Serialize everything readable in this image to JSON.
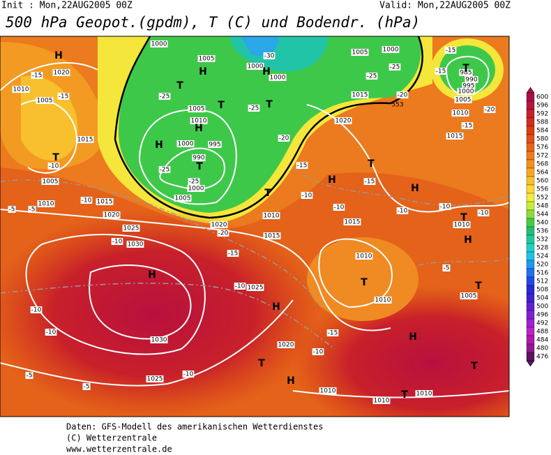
{
  "header": {
    "init": "Init : Mon,22AUG2005 00Z",
    "valid": "Valid: Mon,22AUG2005 00Z",
    "title": "500 hPa Geopot.(gpdm), T (C) und Bodendr. (hPa)"
  },
  "legend": {
    "levels": [
      600,
      596,
      592,
      588,
      584,
      580,
      576,
      572,
      568,
      564,
      560,
      556,
      552,
      548,
      544,
      540,
      536,
      532,
      528,
      524,
      520,
      516,
      512,
      508,
      504,
      500,
      496,
      492,
      488,
      484,
      480,
      476
    ],
    "colors": [
      "#a8104a",
      "#b8143c",
      "#c8202a",
      "#d22d1c",
      "#dc3c14",
      "#e44e14",
      "#ea6418",
      "#f07a1c",
      "#f49020",
      "#f8a826",
      "#fcc02c",
      "#fcd834",
      "#f4ec3c",
      "#c8ec3c",
      "#8cdc3c",
      "#44cc44",
      "#20c070",
      "#20c8a0",
      "#20d0c8",
      "#20c0e8",
      "#2098f0",
      "#2070f0",
      "#2448e8",
      "#2828d8",
      "#4020d0",
      "#6020d0",
      "#8020d0",
      "#a020d0",
      "#c020c8",
      "#b018b0",
      "#901890",
      "#601060"
    ]
  },
  "map": {
    "isobar_labels": [
      1000,
      1005,
      1000,
      1000,
      1005,
      1000,
      1020,
      1010,
      1005,
      1015,
      1005,
      1010,
      1000,
      995,
      990,
      1000,
      1005,
      1015,
      1010,
      1015,
      1020,
      1005,
      1010,
      1015,
      1020,
      1025,
      1030,
      1020,
      1010,
      1015,
      1015,
      1010,
      1010,
      1025,
      1030,
      1020,
      1025,
      1010,
      1010,
      1010,
      1010,
      1005,
      985,
      990,
      995,
      1000,
      1005
    ],
    "centers": [
      "H",
      "H",
      "H",
      "T",
      "T",
      "T",
      "H",
      "H",
      "T",
      "T",
      "T",
      "T",
      "H",
      "H",
      "T",
      "T",
      "H",
      "T",
      "T",
      "H",
      "H",
      "H",
      "T",
      "H",
      "T",
      "T"
    ],
    "temperature_labels": [
      -30,
      -25,
      -25,
      -25,
      -25,
      -20,
      -15,
      -15,
      -20,
      -25,
      -25,
      -15,
      -10,
      -10,
      -10,
      -15,
      -10,
      -10,
      -10,
      -10,
      -15,
      -15,
      -15,
      -20,
      -5,
      -5,
      -10,
      -15,
      -20,
      -5,
      -10,
      -10,
      -10,
      -15,
      -10,
      -10,
      -5,
      -5
    ],
    "geopotential_label": "553"
  },
  "footer": {
    "lines": [
      "Daten: GFS-Modell des amerikanischen Wetterdienstes",
      "(C) Wetterzentrale",
      "www.wetterzentrale.de"
    ]
  }
}
